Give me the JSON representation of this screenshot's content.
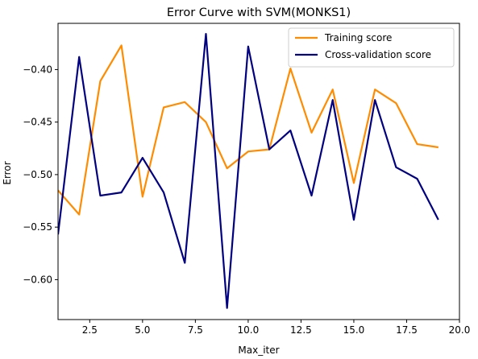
{
  "chart_data": {
    "type": "line",
    "title": "Error Curve with SVM(MONKS1)",
    "xlabel": "Max_iter",
    "ylabel": "Error",
    "xlim": [
      1,
      20
    ],
    "ylim": [
      -0.638,
      -0.356
    ],
    "xticks": [
      2.5,
      5.0,
      7.5,
      10.0,
      12.5,
      15.0,
      17.5,
      20.0
    ],
    "xtick_labels": [
      "2.5",
      "5.0",
      "7.5",
      "10.0",
      "12.5",
      "15.0",
      "17.5",
      "20.0"
    ],
    "yticks": [
      -0.4,
      -0.45,
      -0.5,
      -0.55,
      -0.6
    ],
    "ytick_labels": [
      "−0.40",
      "−0.45",
      "−0.50",
      "−0.55",
      "−0.60"
    ],
    "grid": false,
    "legend": "top-right",
    "x": [
      1,
      2,
      3,
      4,
      5,
      6,
      7,
      8,
      9,
      10,
      11,
      12,
      13,
      14,
      15,
      16,
      17,
      18,
      19
    ],
    "series": [
      {
        "name": "Training score",
        "color": "#ff8c00",
        "values": [
          -0.515,
          -0.538,
          -0.411,
          -0.377,
          -0.521,
          -0.436,
          -0.431,
          -0.45,
          -0.494,
          -0.478,
          -0.476,
          -0.399,
          -0.46,
          -0.419,
          -0.508,
          -0.419,
          -0.432,
          -0.471,
          -0.474
        ]
      },
      {
        "name": "Cross-validation score",
        "color": "#000080",
        "values": [
          -0.557,
          -0.388,
          -0.52,
          -0.517,
          -0.484,
          -0.517,
          -0.584,
          -0.366,
          -0.627,
          -0.378,
          -0.476,
          -0.458,
          -0.52,
          -0.429,
          -0.543,
          -0.429,
          -0.493,
          -0.504,
          -0.543
        ]
      }
    ]
  }
}
